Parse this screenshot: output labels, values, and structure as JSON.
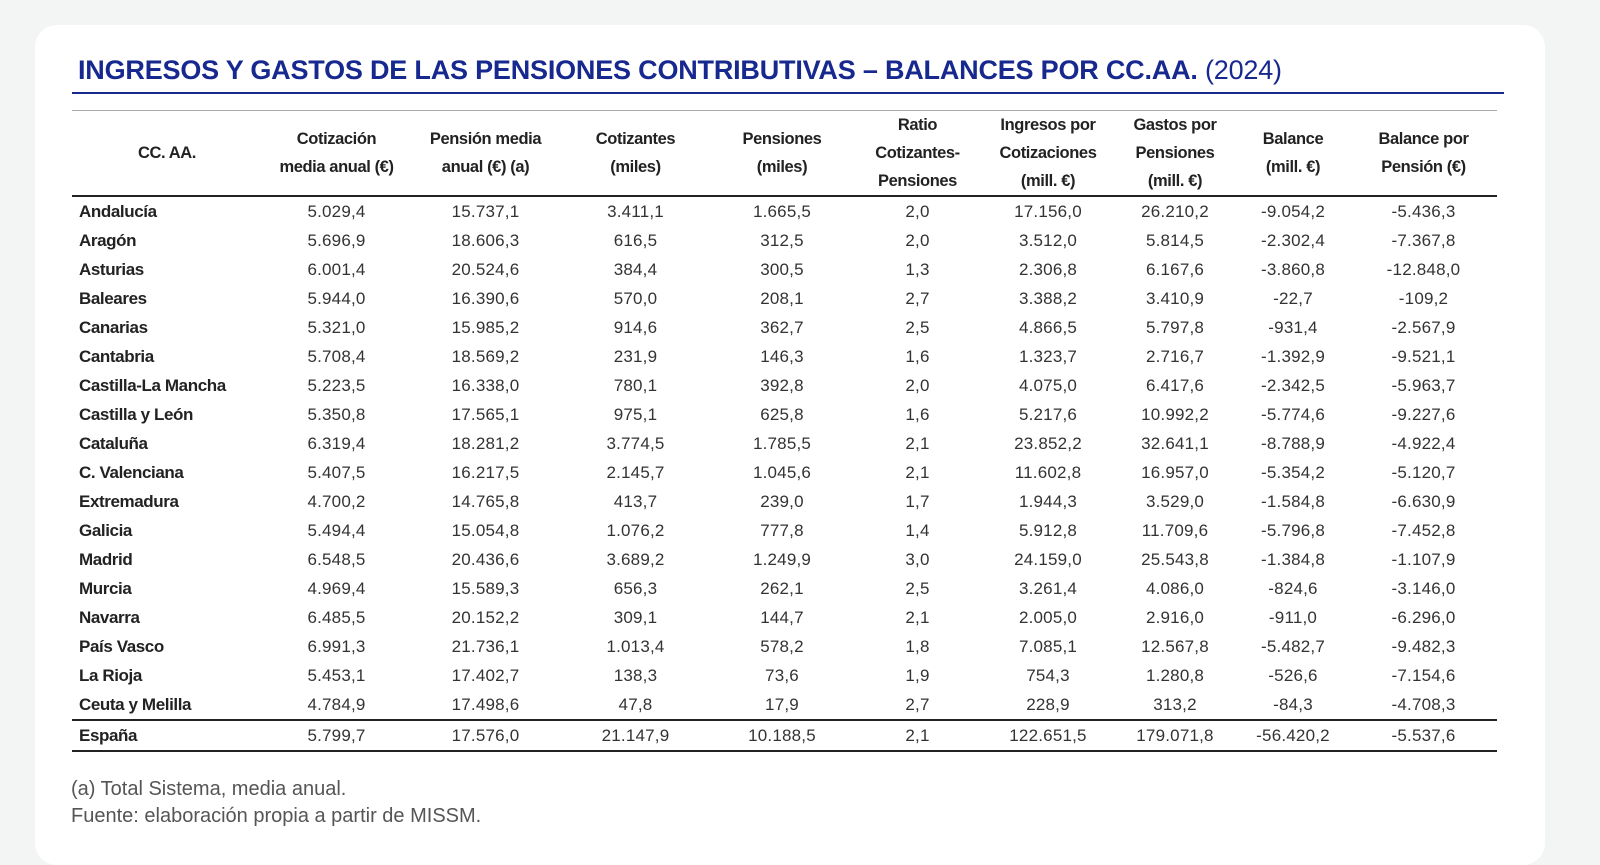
{
  "title": {
    "main": "INGRESOS Y GASTOS DE LAS PENSIONES CONTRIBUTIVAS – BALANCES POR CC.AA.",
    "year": "(2024)"
  },
  "colors": {
    "title": "#17288f",
    "background": "#f3f5f5"
  },
  "table": {
    "headers": [
      [
        "CC. AA."
      ],
      [
        "Cotización",
        "media anual (€)"
      ],
      [
        "Pensión media",
        "anual (€) (a)"
      ],
      [
        "Cotizantes",
        "(miles)"
      ],
      [
        "Pensiones",
        "(miles)"
      ],
      [
        "Ratio",
        "Cotizantes-",
        "Pensiones"
      ],
      [
        "Ingresos por",
        "Cotizaciones",
        "(mill. €)"
      ],
      [
        "Gastos por",
        "Pensiones",
        "(mill. €)"
      ],
      [
        "Balance",
        "(mill. €)"
      ],
      [
        "Balance por",
        "Pensión (€)"
      ]
    ],
    "rows": [
      [
        "Andalucía",
        "5.029,4",
        "15.737,1",
        "3.411,1",
        "1.665,5",
        "2,0",
        "17.156,0",
        "26.210,2",
        "-9.054,2",
        "-5.436,3"
      ],
      [
        "Aragón",
        "5.696,9",
        "18.606,3",
        "616,5",
        "312,5",
        "2,0",
        "3.512,0",
        "5.814,5",
        "-2.302,4",
        "-7.367,8"
      ],
      [
        "Asturias",
        "6.001,4",
        "20.524,6",
        "384,4",
        "300,5",
        "1,3",
        "2.306,8",
        "6.167,6",
        "-3.860,8",
        "-12.848,0"
      ],
      [
        "Baleares",
        "5.944,0",
        "16.390,6",
        "570,0",
        "208,1",
        "2,7",
        "3.388,2",
        "3.410,9",
        "-22,7",
        "-109,2"
      ],
      [
        "Canarias",
        "5.321,0",
        "15.985,2",
        "914,6",
        "362,7",
        "2,5",
        "4.866,5",
        "5.797,8",
        "-931,4",
        "-2.567,9"
      ],
      [
        "Cantabria",
        "5.708,4",
        "18.569,2",
        "231,9",
        "146,3",
        "1,6",
        "1.323,7",
        "2.716,7",
        "-1.392,9",
        "-9.521,1"
      ],
      [
        "Castilla-La Mancha",
        "5.223,5",
        "16.338,0",
        "780,1",
        "392,8",
        "2,0",
        "4.075,0",
        "6.417,6",
        "-2.342,5",
        "-5.963,7"
      ],
      [
        "Castilla y León",
        "5.350,8",
        "17.565,1",
        "975,1",
        "625,8",
        "1,6",
        "5.217,6",
        "10.992,2",
        "-5.774,6",
        "-9.227,6"
      ],
      [
        "Cataluña",
        "6.319,4",
        "18.281,2",
        "3.774,5",
        "1.785,5",
        "2,1",
        "23.852,2",
        "32.641,1",
        "-8.788,9",
        "-4.922,4"
      ],
      [
        "C. Valenciana",
        "5.407,5",
        "16.217,5",
        "2.145,7",
        "1.045,6",
        "2,1",
        "11.602,8",
        "16.957,0",
        "-5.354,2",
        "-5.120,7"
      ],
      [
        "Extremadura",
        "4.700,2",
        "14.765,8",
        "413,7",
        "239,0",
        "1,7",
        "1.944,3",
        "3.529,0",
        "-1.584,8",
        "-6.630,9"
      ],
      [
        "Galicia",
        "5.494,4",
        "15.054,8",
        "1.076,2",
        "777,8",
        "1,4",
        "5.912,8",
        "11.709,6",
        "-5.796,8",
        "-7.452,8"
      ],
      [
        "Madrid",
        "6.548,5",
        "20.436,6",
        "3.689,2",
        "1.249,9",
        "3,0",
        "24.159,0",
        "25.543,8",
        "-1.384,8",
        "-1.107,9"
      ],
      [
        "Murcia",
        "4.969,4",
        "15.589,3",
        "656,3",
        "262,1",
        "2,5",
        "3.261,4",
        "4.086,0",
        "-824,6",
        "-3.146,0"
      ],
      [
        "Navarra",
        "6.485,5",
        "20.152,2",
        "309,1",
        "144,7",
        "2,1",
        "2.005,0",
        "2.916,0",
        "-911,0",
        "-6.296,0"
      ],
      [
        "País Vasco",
        "6.991,3",
        "21.736,1",
        "1.013,4",
        "578,2",
        "1,8",
        "7.085,1",
        "12.567,8",
        "-5.482,7",
        "-9.482,3"
      ],
      [
        "La Rioja",
        "5.453,1",
        "17.402,7",
        "138,3",
        "73,6",
        "1,9",
        "754,3",
        "1.280,8",
        "-526,6",
        "-7.154,6"
      ],
      [
        "Ceuta y Melilla",
        "4.784,9",
        "17.498,6",
        "47,8",
        "17,9",
        "2,7",
        "228,9",
        "313,2",
        "-84,3",
        "-4.708,3"
      ]
    ],
    "total": [
      "España",
      "5.799,7",
      "17.576,0",
      "21.147,9",
      "10.188,5",
      "2,1",
      "122.651,5",
      "179.071,8",
      "-56.420,2",
      "-5.537,6"
    ]
  },
  "notes": [
    "(a) Total Sistema, media anual.",
    "Fuente: elaboración propia a partir de MISSM."
  ]
}
